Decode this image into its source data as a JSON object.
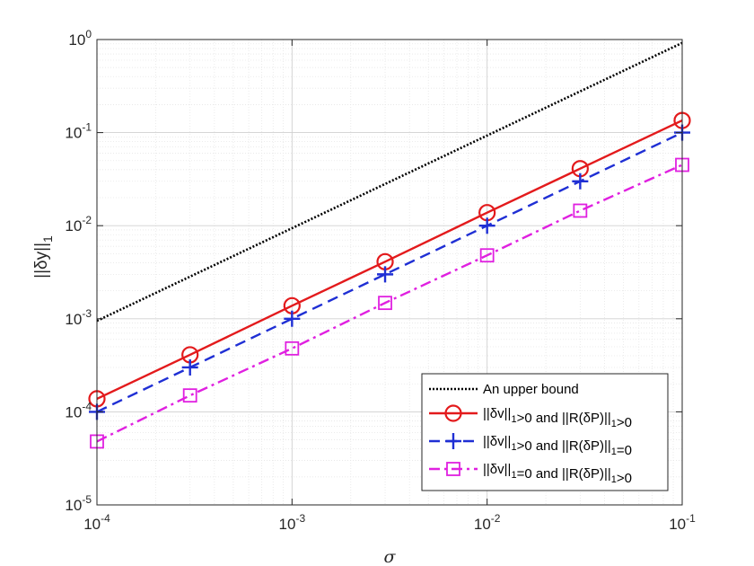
{
  "chart_data": {
    "type": "line",
    "x_scale": "log",
    "y_scale": "log",
    "xlim": [
      0.0001,
      0.1
    ],
    "ylim": [
      1e-05,
      1
    ],
    "grid": true,
    "legend_position": "bottom-right",
    "xlabel": "σ",
    "ylabel": {
      "main": "||δy||",
      "sub": "1"
    },
    "x_ticks": [
      {
        "base": "10",
        "exp": "-4",
        "value": 0.0001
      },
      {
        "base": "10",
        "exp": "-3",
        "value": 0.001
      },
      {
        "base": "10",
        "exp": "-2",
        "value": 0.01
      },
      {
        "base": "10",
        "exp": "-1",
        "value": 0.1
      }
    ],
    "y_ticks": [
      {
        "base": "10",
        "exp": "-5",
        "value": 1e-05
      },
      {
        "base": "10",
        "exp": "-4",
        "value": 0.0001
      },
      {
        "base": "10",
        "exp": "-3",
        "value": 0.001
      },
      {
        "base": "10",
        "exp": "-2",
        "value": 0.01
      },
      {
        "base": "10",
        "exp": "-1",
        "value": 0.1
      },
      {
        "base": "10",
        "exp": "0",
        "value": 1
      }
    ],
    "series": [
      {
        "legend": [
          {
            "t": "An upper bound"
          }
        ],
        "color": "#000000",
        "style": "dotted",
        "marker": "none",
        "x": [
          0.0001,
          0.1
        ],
        "y": [
          0.00095,
          0.92
        ]
      },
      {
        "legend": [
          {
            "t": "||δv||"
          },
          {
            "t": "1",
            "sub": true
          },
          {
            "t": ">0 and ||R(δP)||"
          },
          {
            "t": "1",
            "sub": true
          },
          {
            "t": ">0"
          }
        ],
        "color": "#e31a1c",
        "style": "solid",
        "marker": "circle",
        "x": [
          0.0001,
          0.0003,
          0.001,
          0.003,
          0.01,
          0.03,
          0.1
        ],
        "y": [
          0.000138,
          0.00041,
          0.00138,
          0.0041,
          0.0138,
          0.041,
          0.135
        ]
      },
      {
        "legend": [
          {
            "t": "||δv||"
          },
          {
            "t": "1",
            "sub": true
          },
          {
            "t": ">0 and ||R(δP)||"
          },
          {
            "t": "1",
            "sub": true
          },
          {
            "t": "=0"
          }
        ],
        "color": "#1f2fd4",
        "style": "dashed",
        "marker": "plus",
        "x": [
          0.0001,
          0.0003,
          0.001,
          0.003,
          0.01,
          0.03,
          0.1
        ],
        "y": [
          0.0001,
          0.0003,
          0.001,
          0.003,
          0.01,
          0.03,
          0.1
        ]
      },
      {
        "legend": [
          {
            "t": "||δv||"
          },
          {
            "t": "1",
            "sub": true
          },
          {
            "t": "=0 and ||R(δP)||"
          },
          {
            "t": "1",
            "sub": true
          },
          {
            "t": ">0"
          }
        ],
        "color": "#e020e0",
        "style": "dashdot",
        "marker": "square",
        "x": [
          0.0001,
          0.0003,
          0.001,
          0.003,
          0.01,
          0.03,
          0.1
        ],
        "y": [
          4.8e-05,
          0.00015,
          0.00048,
          0.00148,
          0.0048,
          0.0145,
          0.045
        ]
      }
    ]
  }
}
